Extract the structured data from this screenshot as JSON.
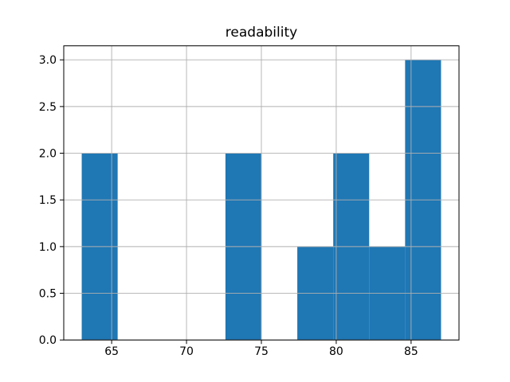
{
  "chart_data": {
    "type": "bar",
    "subtype": "histogram",
    "title": "readability",
    "bin_edges": [
      63.0,
      65.4,
      67.8,
      70.2,
      72.6,
      75.0,
      77.4,
      79.8,
      82.2,
      84.6,
      87.0
    ],
    "counts": [
      2,
      0,
      0,
      0,
      2,
      0,
      1,
      2,
      1,
      3
    ],
    "xticks": [
      65,
      70,
      75,
      80,
      85
    ],
    "xtick_labels": [
      "65",
      "70",
      "75",
      "80",
      "85"
    ],
    "yticks": [
      0.0,
      0.5,
      1.0,
      1.5,
      2.0,
      2.5,
      3.0
    ],
    "ytick_labels": [
      "0.0",
      "0.5",
      "1.0",
      "1.5",
      "2.0",
      "2.5",
      "3.0"
    ],
    "xlim": [
      61.8,
      88.2
    ],
    "ylim": [
      0,
      3.15
    ],
    "xlabel": "",
    "ylabel": "",
    "grid": true,
    "grid_above_bars": true,
    "legend_position": "none",
    "bar_color": "#1f77b4",
    "grid_color": "#b0b0b0",
    "axis_color": "#000000",
    "text_color": "#000000",
    "background_color": "#ffffff"
  }
}
